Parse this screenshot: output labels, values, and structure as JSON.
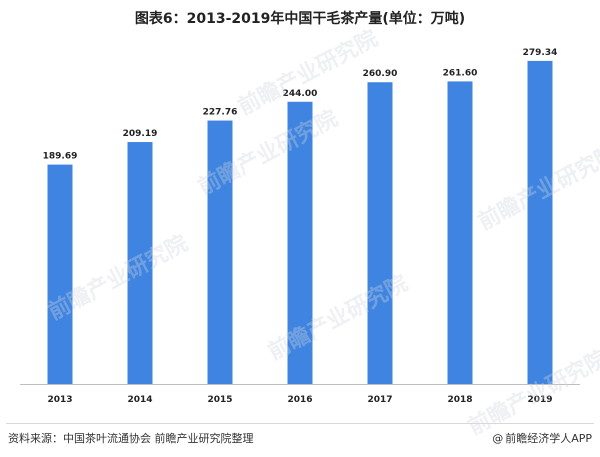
{
  "title": "图表6：2013-2019年中国干毛茶产量(单位：万吨)",
  "footer": {
    "source_label": "资料来源：",
    "source_text": "中国茶叶流通协会 前瞻产业研究院整理",
    "credit": "前瞻经济学人APP",
    "credit_icon": "at-sign-icon"
  },
  "watermark": "前瞻产业研究院",
  "colors": {
    "bar": "#3f84e0",
    "axis": "#bfbfbf",
    "label": "#222222"
  },
  "chart_data": {
    "type": "bar",
    "title": "图表6：2013-2019年中国干毛茶产量(单位：万吨)",
    "categories": [
      "2013",
      "2014",
      "2015",
      "2016",
      "2017",
      "2018",
      "2019"
    ],
    "values": [
      189.69,
      209.19,
      227.76,
      244.0,
      260.9,
      261.6,
      279.34
    ],
    "value_labels": [
      "189.69",
      "209.19",
      "227.76",
      "244.00",
      "260.90",
      "261.60",
      "279.34"
    ],
    "unit": "万吨",
    "xlabel": "",
    "ylabel": "",
    "ylim": [
      0,
      300
    ],
    "grid": false,
    "legend": "none"
  }
}
